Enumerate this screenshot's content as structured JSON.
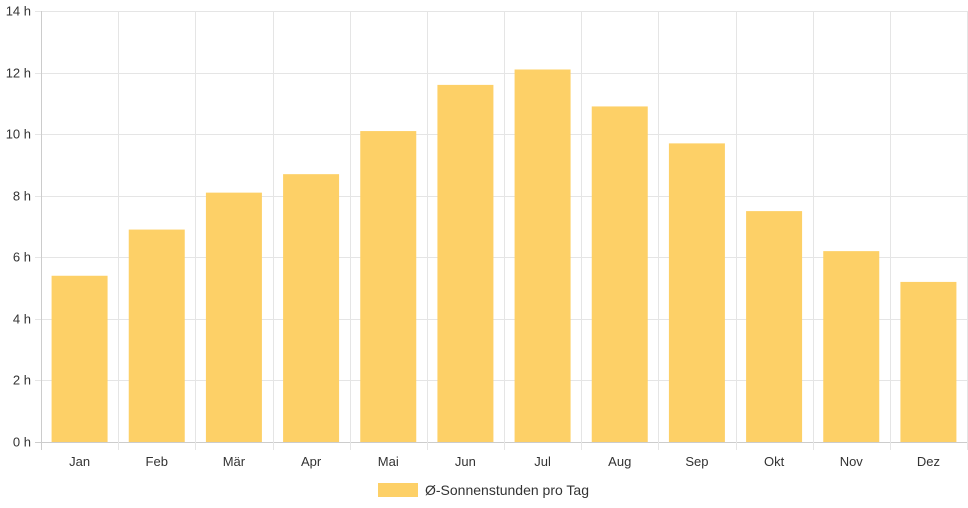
{
  "chart_data": {
    "type": "bar",
    "categories": [
      "Jan",
      "Feb",
      "Mär",
      "Apr",
      "Mai",
      "Jun",
      "Jul",
      "Aug",
      "Sep",
      "Okt",
      "Nov",
      "Dez"
    ],
    "series": [
      {
        "name": "Ø-Sonnenstunden pro Tag",
        "values": [
          5.4,
          6.9,
          8.1,
          8.7,
          10.1,
          11.6,
          12.1,
          10.9,
          9.7,
          7.5,
          6.2,
          5.2
        ],
        "color": "#fdd067"
      }
    ],
    "y_ticks": [
      "0 h",
      "2 h",
      "4 h",
      "6 h",
      "8 h",
      "10 h",
      "12 h",
      "14 h"
    ],
    "ylim": [
      0,
      14
    ],
    "grid": true,
    "legend_position": "bottom",
    "colors": {
      "grid": "#e5e5e5",
      "axis": "#cccccc",
      "text": "#333333"
    }
  }
}
